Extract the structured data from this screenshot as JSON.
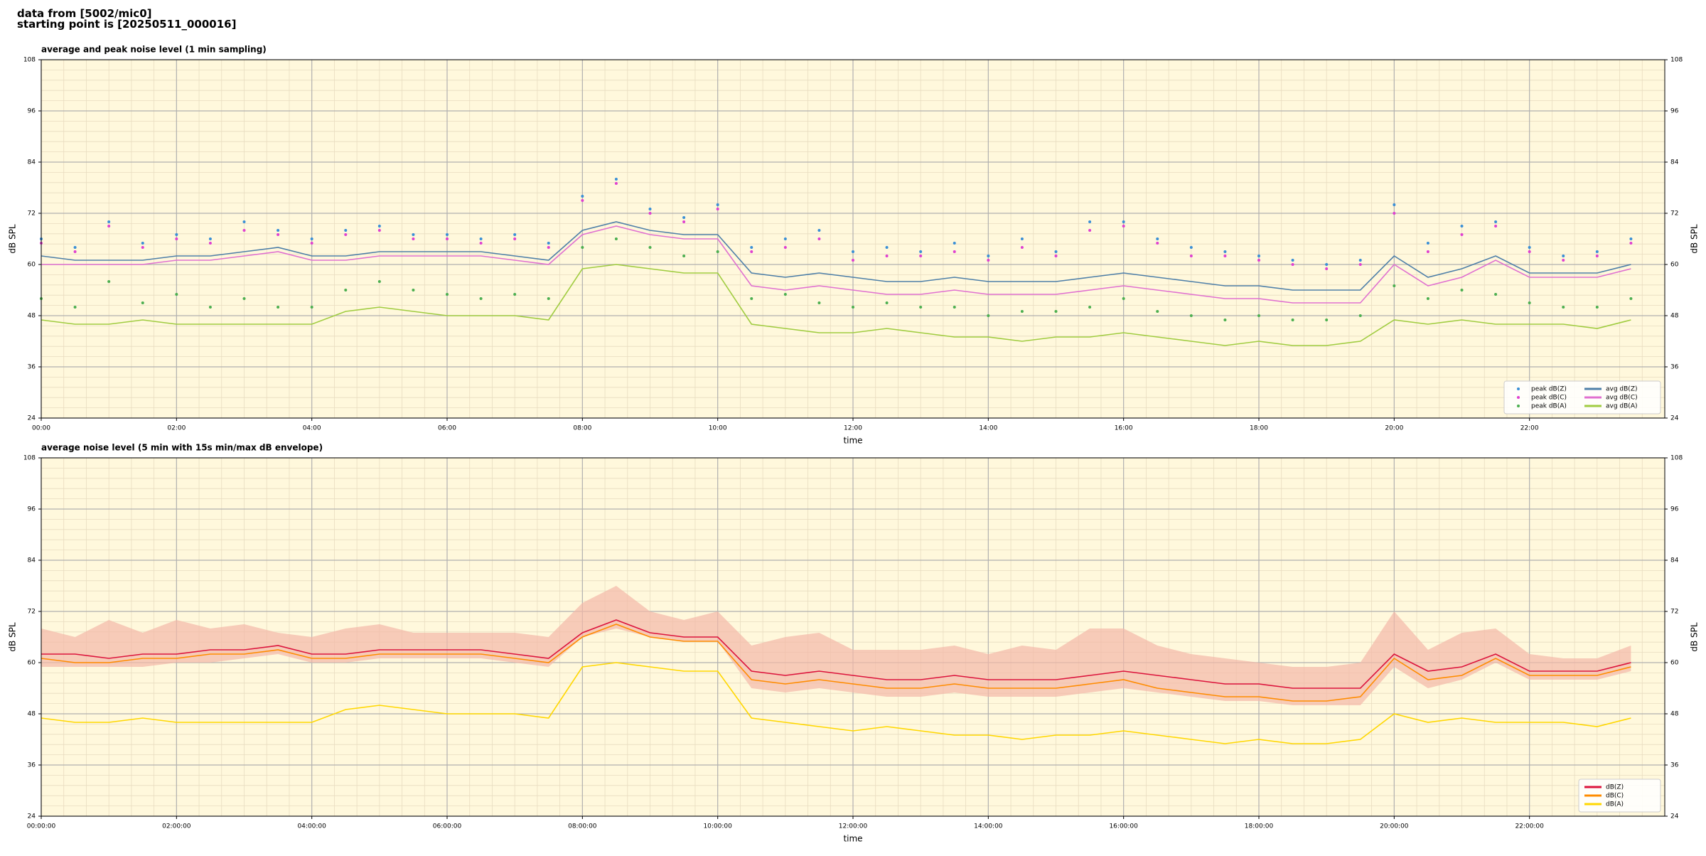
{
  "header": {
    "lines": [
      "data from [5002/mic0]",
      "starting point is [20250511_000016]"
    ]
  },
  "chart_data": [
    {
      "type": "line",
      "title": "average and peak noise level (1 min sampling)",
      "xlabel": "time",
      "ylabel": "dB SPL",
      "background": "#fff8dc",
      "grid": true,
      "legend": "lower right",
      "legend_columns": 2,
      "xlim": [
        0,
        24
      ],
      "ylim": [
        24,
        108
      ],
      "xticks": [
        {
          "value": 0,
          "label": "00:00"
        },
        {
          "value": 2,
          "label": "02:00"
        },
        {
          "value": 4,
          "label": "04:00"
        },
        {
          "value": 6,
          "label": "06:00"
        },
        {
          "value": 8,
          "label": "08:00"
        },
        {
          "value": 10,
          "label": "10:00"
        },
        {
          "value": 12,
          "label": "12:00"
        },
        {
          "value": 14,
          "label": "14:00"
        },
        {
          "value": 16,
          "label": "16:00"
        },
        {
          "value": 18,
          "label": "18:00"
        },
        {
          "value": 20,
          "label": "20:00"
        },
        {
          "value": 22,
          "label": "22:00"
        }
      ],
      "yticks": [
        24,
        36,
        48,
        60,
        72,
        84,
        96,
        108
      ],
      "x": [
        0,
        0.5,
        1,
        1.5,
        2,
        2.5,
        3,
        3.5,
        4,
        4.5,
        5,
        5.5,
        6,
        6.5,
        7,
        7.5,
        8,
        8.5,
        9,
        9.5,
        10,
        10.5,
        11,
        11.5,
        12,
        12.5,
        13,
        13.5,
        14,
        14.5,
        15,
        15.5,
        16,
        16.5,
        17,
        17.5,
        18,
        18.5,
        19,
        19.5,
        20,
        20.5,
        21,
        21.5,
        22,
        22.5,
        23,
        23.5
      ],
      "series": [
        {
          "name": "peak dB(Z)",
          "style": "points",
          "color": "#3a8fd6",
          "values": [
            66,
            64,
            70,
            65,
            67,
            66,
            70,
            68,
            66,
            68,
            69,
            67,
            67,
            66,
            67,
            65,
            76,
            80,
            73,
            71,
            74,
            64,
            66,
            68,
            63,
            64,
            63,
            65,
            62,
            66,
            63,
            70,
            70,
            66,
            64,
            63,
            62,
            61,
            60,
            61,
            74,
            65,
            69,
            70,
            64,
            62,
            63,
            66
          ]
        },
        {
          "name": "peak dB(C)",
          "style": "points",
          "color": "#e040d0",
          "values": [
            65,
            63,
            69,
            64,
            66,
            65,
            68,
            67,
            65,
            67,
            68,
            66,
            66,
            65,
            66,
            64,
            75,
            79,
            72,
            70,
            73,
            63,
            64,
            66,
            61,
            62,
            62,
            63,
            61,
            64,
            62,
            68,
            69,
            65,
            62,
            62,
            61,
            60,
            59,
            60,
            72,
            63,
            67,
            69,
            63,
            61,
            62,
            65
          ]
        },
        {
          "name": "peak dB(A)",
          "style": "points",
          "color": "#4caf50",
          "values": [
            52,
            50,
            56,
            51,
            53,
            50,
            52,
            50,
            50,
            54,
            56,
            54,
            53,
            52,
            53,
            52,
            64,
            66,
            64,
            62,
            63,
            52,
            53,
            51,
            50,
            51,
            50,
            50,
            48,
            49,
            49,
            50,
            52,
            49,
            48,
            47,
            48,
            47,
            47,
            48,
            55,
            52,
            54,
            53,
            51,
            50,
            50,
            52
          ]
        },
        {
          "name": "avg dB(Z)",
          "style": "line",
          "color": "#4e7fa8",
          "values": [
            62,
            61,
            61,
            61,
            62,
            62,
            63,
            64,
            62,
            62,
            63,
            63,
            63,
            63,
            62,
            61,
            68,
            70,
            68,
            67,
            67,
            58,
            57,
            58,
            57,
            56,
            56,
            57,
            56,
            56,
            56,
            57,
            58,
            57,
            56,
            55,
            55,
            54,
            54,
            54,
            62,
            57,
            59,
            62,
            58,
            58,
            58,
            60
          ]
        },
        {
          "name": "avg dB(C)",
          "style": "line",
          "color": "#e070d0",
          "values": [
            60,
            60,
            60,
            60,
            61,
            61,
            62,
            63,
            61,
            61,
            62,
            62,
            62,
            62,
            61,
            60,
            67,
            69,
            67,
            66,
            66,
            55,
            54,
            55,
            54,
            53,
            53,
            54,
            53,
            53,
            53,
            54,
            55,
            54,
            53,
            52,
            52,
            51,
            51,
            51,
            60,
            55,
            57,
            61,
            57,
            57,
            57,
            59
          ]
        },
        {
          "name": "avg dB(A)",
          "style": "line",
          "color": "#a0cc40",
          "values": [
            47,
            46,
            46,
            47,
            46,
            46,
            46,
            46,
            46,
            49,
            50,
            49,
            48,
            48,
            48,
            47,
            59,
            60,
            59,
            58,
            58,
            46,
            45,
            44,
            44,
            45,
            44,
            43,
            43,
            42,
            43,
            43,
            44,
            43,
            42,
            41,
            42,
            41,
            41,
            42,
            47,
            46,
            47,
            46,
            46,
            46,
            45,
            47
          ]
        }
      ]
    },
    {
      "type": "line",
      "title": "average noise level (5 min with 15s min/max dB envelope)",
      "xlabel": "time",
      "ylabel": "dB SPL",
      "background": "#fff8dc",
      "grid": true,
      "legend": "lower right",
      "legend_columns": 1,
      "xlim": [
        0,
        24
      ],
      "ylim": [
        24,
        108
      ],
      "xticks": [
        {
          "value": 0,
          "label": "00:00:00"
        },
        {
          "value": 2,
          "label": "02:00:00"
        },
        {
          "value": 4,
          "label": "04:00:00"
        },
        {
          "value": 6,
          "label": "06:00:00"
        },
        {
          "value": 8,
          "label": "08:00:00"
        },
        {
          "value": 10,
          "label": "10:00:00"
        },
        {
          "value": 12,
          "label": "12:00:00"
        },
        {
          "value": 14,
          "label": "14:00:00"
        },
        {
          "value": 16,
          "label": "16:00:00"
        },
        {
          "value": 18,
          "label": "18:00:00"
        },
        {
          "value": 20,
          "label": "20:00:00"
        },
        {
          "value": 22,
          "label": "22:00:00"
        }
      ],
      "yticks": [
        24,
        36,
        48,
        60,
        72,
        84,
        96,
        108
      ],
      "x": [
        0,
        0.5,
        1,
        1.5,
        2,
        2.5,
        3,
        3.5,
        4,
        4.5,
        5,
        5.5,
        6,
        6.5,
        7,
        7.5,
        8,
        8.5,
        9,
        9.5,
        10,
        10.5,
        11,
        11.5,
        12,
        12.5,
        13,
        13.5,
        14,
        14.5,
        15,
        15.5,
        16,
        16.5,
        17,
        17.5,
        18,
        18.5,
        19,
        19.5,
        20,
        20.5,
        21,
        21.5,
        22,
        22.5,
        23,
        23.5
      ],
      "envelope": {
        "color": "#f4b8a8",
        "lower": [
          59,
          59,
          59,
          59,
          60,
          60,
          61,
          62,
          60,
          60,
          61,
          61,
          61,
          61,
          60,
          59,
          66,
          68,
          66,
          65,
          65,
          54,
          53,
          54,
          53,
          52,
          52,
          53,
          52,
          52,
          52,
          53,
          54,
          53,
          52,
          51,
          51,
          50,
          50,
          50,
          59,
          54,
          56,
          60,
          56,
          56,
          56,
          58
        ],
        "upper": [
          68,
          66,
          70,
          67,
          70,
          68,
          69,
          67,
          66,
          68,
          69,
          67,
          67,
          67,
          67,
          66,
          74,
          78,
          72,
          70,
          72,
          64,
          66,
          67,
          63,
          63,
          63,
          64,
          62,
          64,
          63,
          68,
          68,
          64,
          62,
          61,
          60,
          59,
          59,
          60,
          72,
          63,
          67,
          68,
          62,
          61,
          61,
          64
        ]
      },
      "series": [
        {
          "name": "dB(Z)",
          "style": "line",
          "color": "#dc143c",
          "values": [
            62,
            62,
            61,
            62,
            62,
            63,
            63,
            64,
            62,
            62,
            63,
            63,
            63,
            63,
            62,
            61,
            67,
            70,
            67,
            66,
            66,
            58,
            57,
            58,
            57,
            56,
            56,
            57,
            56,
            56,
            56,
            57,
            58,
            57,
            56,
            55,
            55,
            54,
            54,
            54,
            62,
            58,
            59,
            62,
            58,
            58,
            58,
            60
          ]
        },
        {
          "name": "dB(C)",
          "style": "line",
          "color": "#ff8c00",
          "values": [
            61,
            60,
            60,
            61,
            61,
            62,
            62,
            63,
            61,
            61,
            62,
            62,
            62,
            62,
            61,
            60,
            66,
            69,
            66,
            65,
            65,
            56,
            55,
            56,
            55,
            54,
            54,
            55,
            54,
            54,
            54,
            55,
            56,
            54,
            53,
            52,
            52,
            51,
            51,
            52,
            61,
            56,
            57,
            61,
            57,
            57,
            57,
            59
          ]
        },
        {
          "name": "dB(A)",
          "style": "line",
          "color": "#ffd700",
          "values": [
            47,
            46,
            46,
            47,
            46,
            46,
            46,
            46,
            46,
            49,
            50,
            49,
            48,
            48,
            48,
            47,
            59,
            60,
            59,
            58,
            58,
            47,
            46,
            45,
            44,
            45,
            44,
            43,
            43,
            42,
            43,
            43,
            44,
            43,
            42,
            41,
            42,
            41,
            41,
            42,
            48,
            46,
            47,
            46,
            46,
            46,
            45,
            47
          ]
        }
      ]
    }
  ]
}
